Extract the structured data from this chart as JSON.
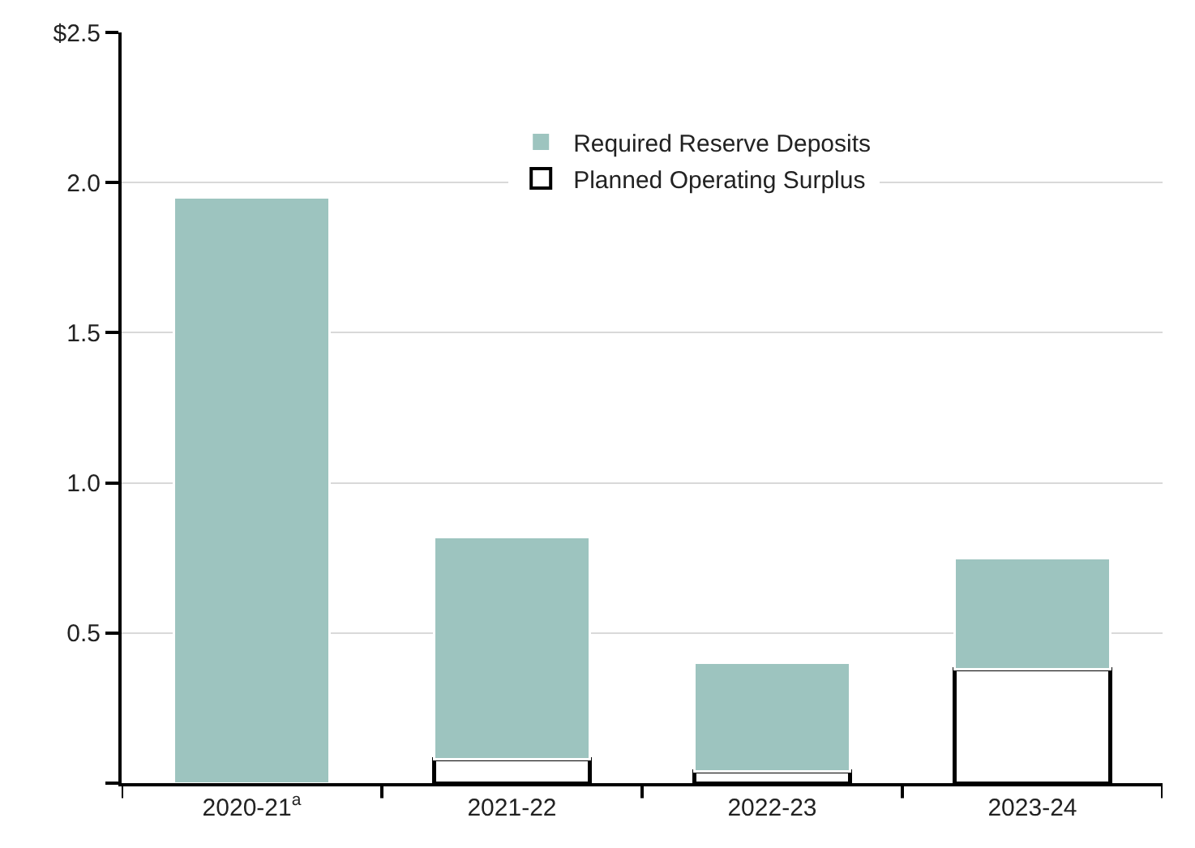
{
  "chart_data": {
    "type": "bar",
    "stacked": true,
    "categories": [
      "2020-21$^{a}$",
      "2021-22",
      "2022-23",
      "2023-24"
    ],
    "series": [
      {
        "name": "Planned Operating Surplus",
        "color": "#ffffff",
        "values": [
          0,
          0.08,
          0.04,
          0.38
        ]
      },
      {
        "name": "Required Reserve Deposits",
        "color": "#9dc4bf",
        "values": [
          1.95,
          0.74,
          0.36,
          0.37
        ]
      }
    ],
    "ylim": [
      0,
      2.5
    ],
    "yticks": [
      {
        "value": 0,
        "label": null
      },
      {
        "value": 0.5,
        "label": "0.5"
      },
      {
        "value": 1,
        "label": "1.0"
      },
      {
        "value": 1.5,
        "label": "1.5"
      },
      {
        "value": 2,
        "label": "2.0"
      },
      {
        "value": 2.5,
        "label": "$2.5"
      }
    ],
    "grid": "y",
    "legend": "top"
  }
}
